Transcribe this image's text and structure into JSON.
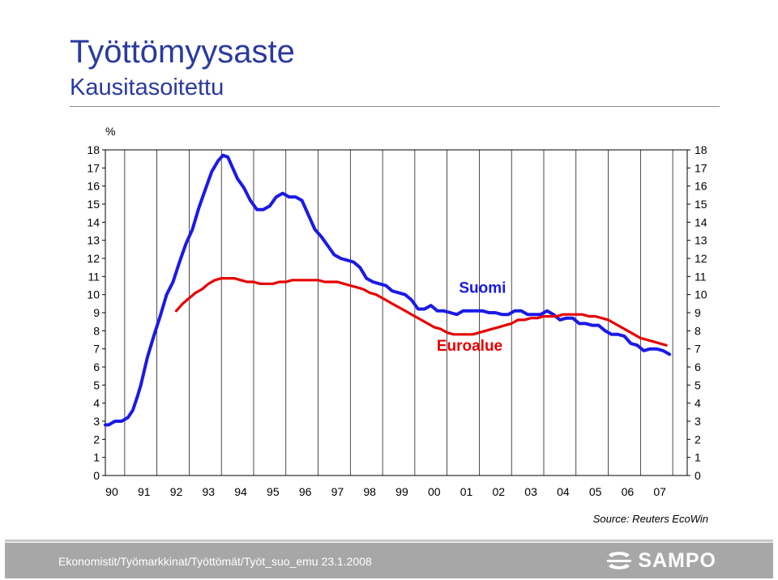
{
  "header": {
    "title": "Työttömyysaste",
    "subtitle": "Kausitasoitettu"
  },
  "chart_data": {
    "type": "line",
    "ylabel": "%",
    "ylim": [
      0,
      18
    ],
    "y_ticks": [
      "0",
      "1",
      "2",
      "3",
      "4",
      "5",
      "6",
      "7",
      "8",
      "9",
      "10",
      "11",
      "12",
      "13",
      "14",
      "15",
      "16",
      "17",
      "18"
    ],
    "x_range": [
      1989.9,
      2007.95
    ],
    "x_ticks": [
      "90",
      "91",
      "92",
      "93",
      "94",
      "95",
      "96",
      "97",
      "98",
      "99",
      "00",
      "01",
      "02",
      "03",
      "04",
      "05",
      "06",
      "07"
    ],
    "grid": "vertical",
    "series": [
      {
        "name": "Suomi",
        "color": "#1a1ae6",
        "points": [
          [
            1989.9,
            2.8
          ],
          [
            1990.0,
            2.8
          ],
          [
            1990.2,
            3.0
          ],
          [
            1990.4,
            3.0
          ],
          [
            1990.6,
            3.2
          ],
          [
            1990.75,
            3.6
          ],
          [
            1990.9,
            4.4
          ],
          [
            1991.0,
            5.0
          ],
          [
            1991.2,
            6.5
          ],
          [
            1991.4,
            7.7
          ],
          [
            1991.6,
            8.8
          ],
          [
            1991.8,
            10.0
          ],
          [
            1992.0,
            10.7
          ],
          [
            1992.2,
            11.8
          ],
          [
            1992.4,
            12.8
          ],
          [
            1992.6,
            13.6
          ],
          [
            1992.8,
            14.8
          ],
          [
            1993.0,
            15.8
          ],
          [
            1993.2,
            16.8
          ],
          [
            1993.4,
            17.4
          ],
          [
            1993.55,
            17.7
          ],
          [
            1993.7,
            17.6
          ],
          [
            1993.85,
            17.0
          ],
          [
            1994.0,
            16.4
          ],
          [
            1994.2,
            15.9
          ],
          [
            1994.4,
            15.2
          ],
          [
            1994.6,
            14.7
          ],
          [
            1994.8,
            14.7
          ],
          [
            1995.0,
            14.9
          ],
          [
            1995.2,
            15.4
          ],
          [
            1995.4,
            15.6
          ],
          [
            1995.6,
            15.4
          ],
          [
            1995.8,
            15.4
          ],
          [
            1996.0,
            15.2
          ],
          [
            1996.2,
            14.4
          ],
          [
            1996.4,
            13.6
          ],
          [
            1996.6,
            13.2
          ],
          [
            1996.8,
            12.7
          ],
          [
            1997.0,
            12.2
          ],
          [
            1997.2,
            12.0
          ],
          [
            1997.4,
            11.9
          ],
          [
            1997.6,
            11.8
          ],
          [
            1997.8,
            11.5
          ],
          [
            1998.0,
            10.9
          ],
          [
            1998.2,
            10.7
          ],
          [
            1998.4,
            10.6
          ],
          [
            1998.6,
            10.5
          ],
          [
            1998.8,
            10.2
          ],
          [
            1999.0,
            10.1
          ],
          [
            1999.2,
            10.0
          ],
          [
            1999.4,
            9.7
          ],
          [
            1999.6,
            9.2
          ],
          [
            1999.8,
            9.2
          ],
          [
            2000.0,
            9.4
          ],
          [
            2000.2,
            9.1
          ],
          [
            2000.4,
            9.1
          ],
          [
            2000.6,
            9.0
          ],
          [
            2000.8,
            8.9
          ],
          [
            2001.0,
            9.1
          ],
          [
            2001.2,
            9.1
          ],
          [
            2001.4,
            9.1
          ],
          [
            2001.6,
            9.1
          ],
          [
            2001.8,
            9.0
          ],
          [
            2002.0,
            9.0
          ],
          [
            2002.2,
            8.9
          ],
          [
            2002.4,
            8.9
          ],
          [
            2002.6,
            9.1
          ],
          [
            2002.8,
            9.1
          ],
          [
            2003.0,
            8.9
          ],
          [
            2003.2,
            8.9
          ],
          [
            2003.4,
            8.9
          ],
          [
            2003.6,
            9.1
          ],
          [
            2003.8,
            8.9
          ],
          [
            2004.0,
            8.6
          ],
          [
            2004.2,
            8.7
          ],
          [
            2004.4,
            8.7
          ],
          [
            2004.6,
            8.4
          ],
          [
            2004.8,
            8.4
          ],
          [
            2005.0,
            8.3
          ],
          [
            2005.2,
            8.3
          ],
          [
            2005.4,
            8.0
          ],
          [
            2005.6,
            7.8
          ],
          [
            2005.8,
            7.8
          ],
          [
            2006.0,
            7.7
          ],
          [
            2006.2,
            7.3
          ],
          [
            2006.4,
            7.2
          ],
          [
            2006.6,
            6.9
          ],
          [
            2006.8,
            7.0
          ],
          [
            2007.0,
            7.0
          ],
          [
            2007.2,
            6.9
          ],
          [
            2007.4,
            6.7
          ]
        ]
      },
      {
        "name": "Euroalue",
        "color": "#e60000",
        "points": [
          [
            1992.1,
            9.1
          ],
          [
            1992.3,
            9.5
          ],
          [
            1992.5,
            9.8
          ],
          [
            1992.7,
            10.1
          ],
          [
            1992.9,
            10.3
          ],
          [
            1993.1,
            10.6
          ],
          [
            1993.3,
            10.8
          ],
          [
            1993.5,
            10.9
          ],
          [
            1993.7,
            10.9
          ],
          [
            1993.9,
            10.9
          ],
          [
            1994.1,
            10.8
          ],
          [
            1994.3,
            10.7
          ],
          [
            1994.5,
            10.7
          ],
          [
            1994.7,
            10.6
          ],
          [
            1994.9,
            10.6
          ],
          [
            1995.1,
            10.6
          ],
          [
            1995.3,
            10.7
          ],
          [
            1995.5,
            10.7
          ],
          [
            1995.7,
            10.8
          ],
          [
            1995.9,
            10.8
          ],
          [
            1996.1,
            10.8
          ],
          [
            1996.3,
            10.8
          ],
          [
            1996.5,
            10.8
          ],
          [
            1996.7,
            10.7
          ],
          [
            1996.9,
            10.7
          ],
          [
            1997.1,
            10.7
          ],
          [
            1997.3,
            10.6
          ],
          [
            1997.5,
            10.5
          ],
          [
            1997.7,
            10.4
          ],
          [
            1997.9,
            10.3
          ],
          [
            1998.1,
            10.1
          ],
          [
            1998.3,
            10.0
          ],
          [
            1998.5,
            9.8
          ],
          [
            1998.7,
            9.6
          ],
          [
            1998.9,
            9.4
          ],
          [
            1999.1,
            9.2
          ],
          [
            1999.3,
            9.0
          ],
          [
            1999.5,
            8.8
          ],
          [
            1999.7,
            8.6
          ],
          [
            1999.9,
            8.4
          ],
          [
            2000.1,
            8.2
          ],
          [
            2000.3,
            8.1
          ],
          [
            2000.5,
            7.9
          ],
          [
            2000.7,
            7.8
          ],
          [
            2000.9,
            7.8
          ],
          [
            2001.1,
            7.8
          ],
          [
            2001.3,
            7.8
          ],
          [
            2001.5,
            7.9
          ],
          [
            2001.7,
            8.0
          ],
          [
            2001.9,
            8.1
          ],
          [
            2002.1,
            8.2
          ],
          [
            2002.3,
            8.3
          ],
          [
            2002.5,
            8.4
          ],
          [
            2002.7,
            8.6
          ],
          [
            2002.9,
            8.6
          ],
          [
            2003.1,
            8.7
          ],
          [
            2003.3,
            8.7
          ],
          [
            2003.5,
            8.8
          ],
          [
            2003.7,
            8.8
          ],
          [
            2003.9,
            8.8
          ],
          [
            2004.1,
            8.9
          ],
          [
            2004.3,
            8.9
          ],
          [
            2004.5,
            8.9
          ],
          [
            2004.7,
            8.9
          ],
          [
            2004.9,
            8.8
          ],
          [
            2005.1,
            8.8
          ],
          [
            2005.3,
            8.7
          ],
          [
            2005.5,
            8.6
          ],
          [
            2005.7,
            8.4
          ],
          [
            2005.9,
            8.2
          ],
          [
            2006.1,
            8.0
          ],
          [
            2006.3,
            7.8
          ],
          [
            2006.5,
            7.6
          ],
          [
            2006.7,
            7.5
          ],
          [
            2006.9,
            7.4
          ],
          [
            2007.1,
            7.3
          ],
          [
            2007.3,
            7.2
          ]
        ]
      }
    ],
    "annotations": [
      {
        "text": "Suomi",
        "color": "#1a1ae6",
        "x": 2001.6,
        "y": 10.1
      },
      {
        "text": "Euroalue",
        "color": "#e60000",
        "x": 2001.2,
        "y": 6.9
      }
    ]
  },
  "source": "Source: Reuters EcoWin",
  "footer": {
    "path": "Ekonomistit/Työmarkkinat/Työttömät/Työt_suo_emu  23.1.2008",
    "logo": "SAMPO"
  }
}
